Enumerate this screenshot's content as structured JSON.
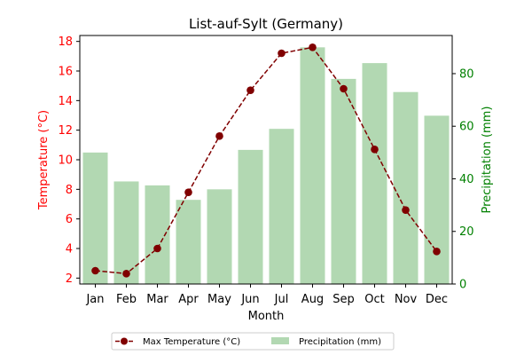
{
  "chart_data": {
    "type": "bar+line",
    "title": "List-auf-Sylt (Germany)",
    "xlabel": "Month",
    "categories": [
      "Jan",
      "Feb",
      "Mar",
      "Apr",
      "May",
      "Jun",
      "Jul",
      "Aug",
      "Sep",
      "Oct",
      "Nov",
      "Dec"
    ],
    "series": [
      {
        "name": "Max Temperature (°C)",
        "type": "line",
        "axis": "left",
        "color": "#800000",
        "values": [
          2.5,
          2.3,
          4.0,
          7.8,
          11.6,
          14.7,
          17.2,
          17.6,
          14.8,
          10.7,
          6.6,
          3.8
        ]
      },
      {
        "name": "Precipitation (mm)",
        "type": "bar",
        "axis": "right",
        "color": "#b2d8b2",
        "values": [
          50,
          39,
          37.5,
          32,
          36,
          51,
          59,
          90,
          78,
          84,
          73,
          64
        ]
      }
    ],
    "y_left": {
      "label": "Temperature (°C)",
      "color": "#ff0000",
      "ylim": [
        1.6,
        18.4
      ],
      "ticks": [
        2,
        4,
        6,
        8,
        10,
        12,
        14,
        16,
        18
      ]
    },
    "y_right": {
      "label": "Precipitation (mm)",
      "color": "#008000",
      "ylim": [
        0,
        94.5
      ],
      "ticks": [
        0,
        20,
        40,
        60,
        80
      ]
    },
    "legend_placement": "bottom-center",
    "grid": false
  }
}
